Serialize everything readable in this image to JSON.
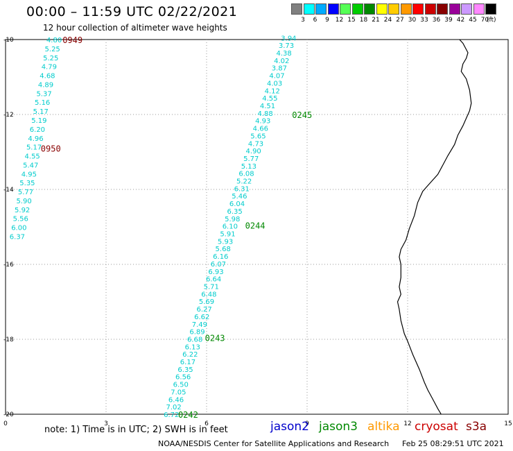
{
  "header": {
    "title": "00:00 – 11:59 UTC 02/22/2021",
    "subtitle": "12 hour collection of altimeter wave heights"
  },
  "colorbar": {
    "swatches": [
      {
        "label": "3",
        "color": "#808080"
      },
      {
        "label": "6",
        "color": "#00ffff"
      },
      {
        "label": "9",
        "color": "#00aaff"
      },
      {
        "label": "12",
        "color": "#0000ff"
      },
      {
        "label": "15",
        "color": "#55ff55"
      },
      {
        "label": "18",
        "color": "#00cc00"
      },
      {
        "label": "21",
        "color": "#008800"
      },
      {
        "label": "24",
        "color": "#ffff00"
      },
      {
        "label": "27",
        "color": "#ffcc00"
      },
      {
        "label": "30",
        "color": "#ff9900"
      },
      {
        "label": "33",
        "color": "#ff0000"
      },
      {
        "label": "36",
        "color": "#cc0000"
      },
      {
        "label": "39",
        "color": "#880000"
      },
      {
        "label": "42",
        "color": "#990099"
      },
      {
        "label": "45",
        "color": "#cc99ff"
      },
      {
        "label": "70",
        "color": "#ff88ff"
      },
      {
        "label": "",
        "color": "#000000"
      }
    ],
    "unit": "(ft)"
  },
  "axes": {
    "lon_ticks": [
      {
        "v": 0,
        "label": "0"
      },
      {
        "v": 3,
        "label": "3"
      },
      {
        "v": 6,
        "label": "6"
      },
      {
        "v": 9,
        "label": "9"
      },
      {
        "v": 12,
        "label": "12"
      },
      {
        "v": 15,
        "label": "15"
      }
    ],
    "lat_ticks": [
      {
        "v": -10,
        "label": "-10"
      },
      {
        "v": -12,
        "label": "-12"
      },
      {
        "v": -14,
        "label": "-14"
      },
      {
        "v": -16,
        "label": "-16"
      },
      {
        "v": -18,
        "label": "-18"
      },
      {
        "v": -20,
        "label": "-20"
      }
    ],
    "lon_range": [
      0,
      15
    ],
    "lat_range": [
      -20,
      -10
    ]
  },
  "tracks": [
    {
      "color": "#00cccc",
      "start": [
        1.45,
        -10.0
      ],
      "end": [
        0.35,
        -15.25
      ],
      "values": [
        "4.80",
        "5.25",
        "5.25",
        "4.79",
        "4.68",
        "4.89",
        "5.37",
        "5.16",
        "5.17",
        "5.19",
        "6.20",
        "4.96",
        "5.17",
        "4.55",
        "5.47",
        "4.95",
        "5.35",
        "5.77",
        "5.90",
        "5.92",
        "5.56",
        "6.00",
        "6.37"
      ],
      "time_labels": [
        {
          "text": "0949",
          "lon": 2.0,
          "lat": -10.0,
          "color": "#880000"
        },
        {
          "text": "0950",
          "lon": 1.35,
          "lat": -12.9,
          "color": "#880000"
        }
      ]
    },
    {
      "color": "#00cccc",
      "start": [
        8.45,
        -9.95
      ],
      "end": [
        4.95,
        -20.0
      ],
      "values": [
        "3.94",
        "3.73",
        "4.38",
        "4.02",
        "3.87",
        "4.07",
        "4.03",
        "4.12",
        "4.55",
        "4.51",
        "4.88",
        "4.93",
        "4.66",
        "5.65",
        "4.73",
        "4.90",
        "5.77",
        "5.13",
        "6.08",
        "5.22",
        "6.31",
        "5.46",
        "6.04",
        "6.35",
        "5.98",
        "6.10",
        "5.91",
        "5.93",
        "5.68",
        "6.16",
        "6.07",
        "6.93",
        "6.64",
        "5.71",
        "6.48",
        "5.69",
        "6.27",
        "6.62",
        "7.49",
        "6.89",
        "6.68",
        "6.13",
        "6.22",
        "6.17",
        "6.35",
        "6.56",
        "6.50",
        "7.05",
        "6.46",
        "7.02",
        "6.72"
      ],
      "time_labels": [
        {
          "text": "0245",
          "lon": 8.85,
          "lat": -12.0,
          "color": "#008800"
        },
        {
          "text": "0244",
          "lon": 7.45,
          "lat": -14.95,
          "color": "#008800"
        },
        {
          "text": "0243",
          "lon": 6.25,
          "lat": -17.95,
          "color": "#008800"
        },
        {
          "text": "0242",
          "lon": 5.45,
          "lat": -20.0,
          "color": "#008800"
        }
      ]
    }
  ],
  "coastline": [
    [
      13.55,
      -10.0
    ],
    [
      13.65,
      -10.1
    ],
    [
      13.8,
      -10.35
    ],
    [
      13.75,
      -10.5
    ],
    [
      13.65,
      -10.65
    ],
    [
      13.6,
      -10.85
    ],
    [
      13.75,
      -11.05
    ],
    [
      13.85,
      -11.35
    ],
    [
      13.9,
      -11.7
    ],
    [
      13.85,
      -11.9
    ],
    [
      13.75,
      -12.1
    ],
    [
      13.65,
      -12.3
    ],
    [
      13.5,
      -12.55
    ],
    [
      13.4,
      -12.8
    ],
    [
      13.2,
      -13.1
    ],
    [
      13.05,
      -13.35
    ],
    [
      12.9,
      -13.6
    ],
    [
      12.65,
      -13.85
    ],
    [
      12.45,
      -14.05
    ],
    [
      12.3,
      -14.35
    ],
    [
      12.2,
      -14.7
    ],
    [
      12.05,
      -15.05
    ],
    [
      11.95,
      -15.35
    ],
    [
      11.8,
      -15.6
    ],
    [
      11.75,
      -15.8
    ],
    [
      11.8,
      -16.0
    ],
    [
      11.8,
      -16.35
    ],
    [
      11.75,
      -16.6
    ],
    [
      11.8,
      -16.8
    ],
    [
      11.7,
      -17.0
    ],
    [
      11.75,
      -17.2
    ],
    [
      11.8,
      -17.5
    ],
    [
      11.9,
      -17.85
    ],
    [
      12.0,
      -18.05
    ],
    [
      12.15,
      -18.4
    ],
    [
      12.35,
      -18.8
    ],
    [
      12.5,
      -19.15
    ],
    [
      12.6,
      -19.35
    ],
    [
      12.75,
      -19.6
    ],
    [
      12.9,
      -19.85
    ],
    [
      13.0,
      -20.0
    ]
  ],
  "footer": {
    "note": "note: 1) Time is in UTC; 2) SWH is in feet",
    "satellites": [
      {
        "name": "jason2",
        "color": "#0000cc"
      },
      {
        "name": "jason3",
        "color": "#008800"
      },
      {
        "name": "altika",
        "color": "#ff9900"
      },
      {
        "name": "cryosat",
        "color": "#cc0000"
      },
      {
        "name": "s3a",
        "color": "#880000"
      }
    ],
    "credit": "NOAA/NESDIS Center for Satellite Applications and Research",
    "timestamp": "Feb 25 08:29:51 UTC 2021"
  }
}
